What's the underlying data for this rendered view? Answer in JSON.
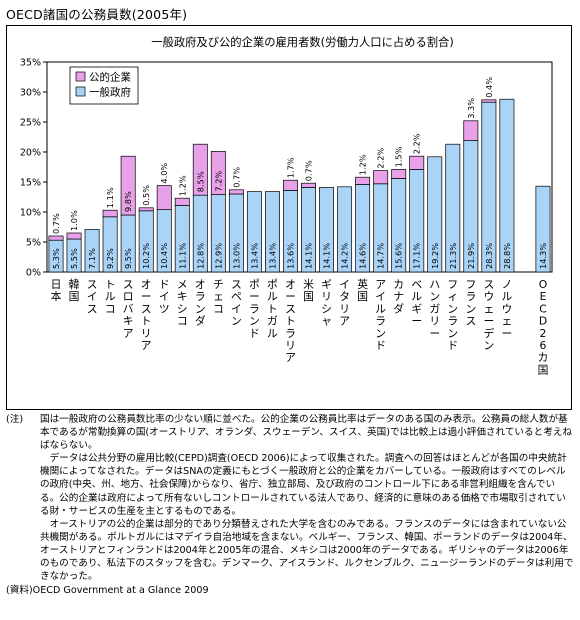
{
  "page_title": "OECD諸国の公務員数(2005年)",
  "chart_data": {
    "type": "bar",
    "stacked": true,
    "title": "一般政府及び公的企業の雇用者数(労働力人口に占める割合)",
    "ylim": [
      0,
      35
    ],
    "yticks": [
      "0%",
      "5%",
      "10%",
      "15%",
      "20%",
      "25%",
      "30%",
      "35%"
    ],
    "grid": false,
    "legend_position": "top-left",
    "categories": [
      "日本",
      "韓国",
      "スイス",
      "トルコ",
      "スロバキア",
      "オーストリア",
      "ドイツ",
      "メキシコ",
      "オランダ",
      "チェコ",
      "スペイン",
      "ポーランド",
      "ポルトガル",
      "オーストラリア",
      "米国",
      "ギリシャ",
      "イタリア",
      "英国",
      "アイルランド",
      "カナダ",
      "ベルギー",
      "ハンガリー",
      "フィンランド",
      "フランス",
      "スウェーデン",
      "ノルウェー",
      "",
      "OECD26カ国"
    ],
    "series": [
      {
        "name": "一般政府",
        "color": "#a9d3f7",
        "values": [
          5.3,
          5.5,
          7.1,
          9.2,
          9.5,
          10.2,
          10.4,
          11.1,
          12.8,
          12.9,
          13.0,
          13.4,
          13.4,
          13.6,
          14.1,
          14.1,
          14.2,
          14.6,
          14.7,
          15.6,
          17.1,
          19.2,
          21.3,
          21.9,
          28.3,
          28.8,
          null,
          14.3
        ],
        "labels": [
          "5.3%",
          "5.5%",
          "7.1%",
          "9.2%",
          "9.5%",
          "10.2%",
          "10.4%",
          "11.1%",
          "12.8%",
          "12.9%",
          "13.0%",
          "13.4%",
          "13.4%",
          "13.6%",
          "14.1%",
          "14.1%",
          "14.2%",
          "14.6%",
          "14.7%",
          "15.6%",
          "17.1%",
          "19.2%",
          "21.3%",
          "21.9%",
          "28.3%",
          "28.8%",
          "",
          "14.3%"
        ]
      },
      {
        "name": "公的企業",
        "color": "#e8a0e8",
        "values": [
          0.7,
          1.0,
          null,
          1.1,
          9.8,
          0.5,
          4.0,
          1.2,
          8.5,
          7.2,
          0.7,
          null,
          null,
          1.7,
          0.7,
          null,
          null,
          1.2,
          2.2,
          1.5,
          2.2,
          null,
          null,
          3.3,
          0.4,
          null,
          null,
          null
        ],
        "labels": [
          "0.7%",
          "1.0%",
          "",
          "1.1%",
          "9.8%",
          "0.5%",
          "4.0%",
          "1.2%",
          "8.5%",
          "7.2%",
          "0.7%",
          "",
          "",
          "1.7%",
          "0.7%",
          "",
          "",
          "1.2%",
          "2.2%",
          "1.5%",
          "2.2%",
          "",
          "",
          "3.3%",
          "0.4%",
          "",
          "",
          ""
        ]
      }
    ]
  },
  "notes": {
    "label": "(注)",
    "paragraphs": [
      "国は一般政府の公務員数比率の少ない順に並べた。公的企業の公務員比率はデータのある国のみ表示。公務員の総人数が基本であるが常勤換算の国(オーストリア、オランダ、スウェーデン、スイス、英国)では比較上は過小評価されていると考えねばならない。",
      "データは公共分野の雇用比較(CEPD)調査(OECD 2006)によって収集された。調査への回答はほとんどが各国の中央統計機関によってなされた。データはSNAの定義にもとづく一般政府と公的企業をカバーしている。一般政府はすべてのレベルの政府(中央、州、地方、社会保障)からなり、省庁、独立部局、及び政府のコントロール下にある非営利組織を含んでいる。公的企業は政府によって所有ないしコントロールされている法人であり、経済的に意味のある価格で市場取引されている財・サービスの生産を主とするものである。",
      "オーストリアの公的企業は部分的であり分類替えされた大学を含むのみである。フランスのデータには含まれていない公共機関がある。ポルトガルにはマデイラ自治地域を含まない。ベルギー、フランス、韓国、ポーランドのデータは2004年、オーストリアとフィンランドは2004年と2005年の混合、メキシコは2000年のデータである。ギリシャのデータは2006年のものであり、私法下のスタッフを含む。デンマーク、アイスランド、ルクセンブルク、ニュージーランドのデータは利用できなかった。"
    ],
    "source": "(資料)OECD Government at a Glance 2009"
  }
}
